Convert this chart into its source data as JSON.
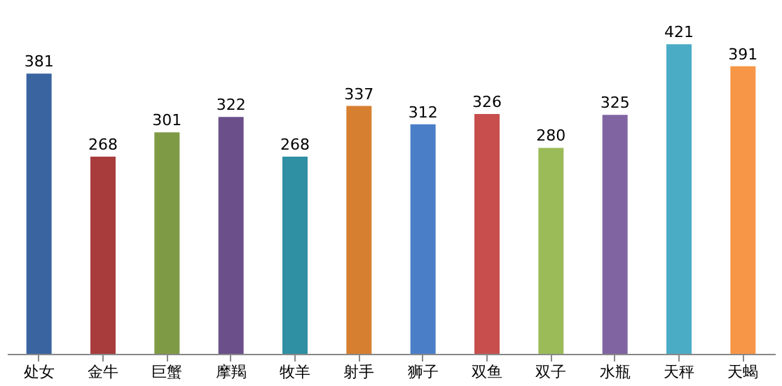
{
  "chart_data": {
    "type": "bar",
    "categories": [
      "处女",
      "金牛",
      "巨蟹",
      "摩羯",
      "牧羊",
      "射手",
      "狮子",
      "双鱼",
      "双子",
      "水瓶",
      "天秤",
      "天蝎"
    ],
    "values": [
      381,
      268,
      301,
      322,
      268,
      337,
      312,
      326,
      280,
      325,
      421,
      391
    ],
    "colors": [
      "#3a64a0",
      "#a83c3c",
      "#7f9a45",
      "#6a4f8a",
      "#2f8fa3",
      "#d67f30",
      "#4a7fc8",
      "#c84e4e",
      "#9bbb59",
      "#8064a2",
      "#4bacc6",
      "#f79646"
    ],
    "data_labels": true,
    "grid": false,
    "legend": false
  }
}
